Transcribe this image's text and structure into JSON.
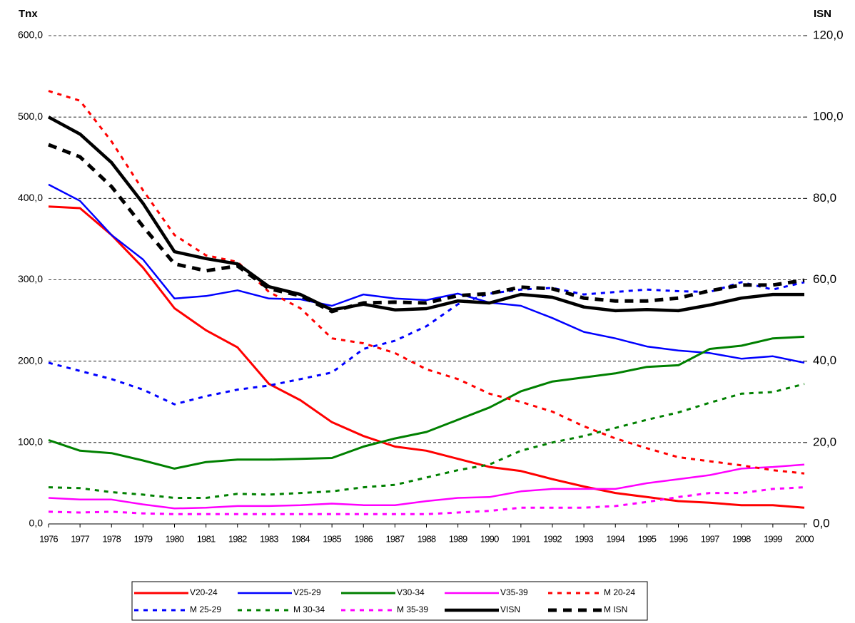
{
  "chart_data": {
    "type": "line",
    "y_label": "Tnx",
    "y2_label": "ISN",
    "categories": [
      "1976",
      "1977",
      "1978",
      "1979",
      "1980",
      "1981",
      "1982",
      "1983",
      "1984",
      "1985",
      "1986",
      "1987",
      "1988",
      "1989",
      "1990",
      "1991",
      "1992",
      "1993",
      "1994",
      "1995",
      "1996",
      "1997",
      "1998",
      "1999",
      "2000"
    ],
    "ylim": [
      0,
      600
    ],
    "yticks": [
      {
        "value": 0,
        "label": "0,0"
      },
      {
        "value": 100,
        "label": "100,0"
      },
      {
        "value": 200,
        "label": "200,0"
      },
      {
        "value": 300,
        "label": "300,0"
      },
      {
        "value": 400,
        "label": "400,0"
      },
      {
        "value": 500,
        "label": "500,0"
      },
      {
        "value": 600,
        "label": "600,0"
      }
    ],
    "y2lim": [
      0,
      120
    ],
    "y2ticks": [
      {
        "value": 0,
        "label": "0,0"
      },
      {
        "value": 20,
        "label": "20,0"
      },
      {
        "value": 40,
        "label": "40,0"
      },
      {
        "value": 60,
        "label": "60,0"
      },
      {
        "value": 80,
        "label": "80,0"
      },
      {
        "value": 100,
        "label": "100,0"
      },
      {
        "value": 120,
        "label": "120,0"
      }
    ],
    "grid": true,
    "legend": "bottom",
    "series": [
      {
        "name": "V20-24",
        "color": "#ff0000",
        "style": "solid",
        "line_width": 3,
        "values": [
          390,
          388,
          355,
          315,
          265,
          238,
          217,
          172,
          152,
          125,
          108,
          95,
          90,
          80,
          70,
          65,
          55,
          46,
          38,
          33,
          28,
          26,
          23,
          23,
          20
        ]
      },
      {
        "name": "V25-29",
        "color": "#0000ff",
        "style": "solid",
        "line_width": 2.5,
        "values": [
          417,
          397,
          355,
          325,
          277,
          280,
          287,
          277,
          276,
          268,
          282,
          277,
          275,
          283,
          272,
          268,
          253,
          236,
          228,
          218,
          213,
          210,
          203,
          206,
          198
        ]
      },
      {
        "name": "V30-34",
        "color": "#008000",
        "style": "solid",
        "line_width": 3,
        "values": [
          103,
          90,
          87,
          78,
          68,
          76,
          79,
          79,
          80,
          81,
          95,
          105,
          113,
          128,
          143,
          163,
          175,
          180,
          185,
          193,
          195,
          215,
          219,
          228,
          230
        ]
      },
      {
        "name": "V35-39",
        "color": "#ff00ff",
        "style": "solid",
        "line_width": 2.5,
        "values": [
          32,
          30,
          30,
          24,
          19,
          20,
          22,
          22,
          23,
          25,
          23,
          23,
          28,
          32,
          33,
          40,
          43,
          43,
          43,
          50,
          55,
          60,
          68,
          70,
          73
        ]
      },
      {
        "name": "M 20-24",
        "color": "#ff0000",
        "style": "dashed",
        "line_width": 3,
        "values": [
          532,
          520,
          470,
          410,
          355,
          330,
          322,
          285,
          265,
          228,
          222,
          210,
          190,
          178,
          160,
          150,
          138,
          120,
          105,
          93,
          82,
          77,
          72,
          66,
          62
        ]
      },
      {
        "name": "M 25-29",
        "color": "#0000ff",
        "style": "dashed",
        "line_width": 3,
        "values": [
          198,
          188,
          178,
          165,
          147,
          157,
          165,
          170,
          178,
          186,
          215,
          225,
          243,
          270,
          283,
          288,
          290,
          282,
          285,
          288,
          286,
          285,
          297,
          288,
          297
        ]
      },
      {
        "name": "M 30-34",
        "color": "#008000",
        "style": "dashed",
        "line_width": 3,
        "values": [
          45,
          44,
          39,
          36,
          32,
          32,
          37,
          36,
          38,
          40,
          45,
          48,
          57,
          66,
          73,
          90,
          100,
          108,
          118,
          128,
          137,
          149,
          160,
          162,
          172
        ]
      },
      {
        "name": "M 35-39",
        "color": "#ff00ff",
        "style": "dashed",
        "line_width": 3,
        "values": [
          15,
          14,
          15,
          13,
          12,
          12,
          12,
          12,
          12,
          12,
          12,
          12,
          12,
          14,
          16,
          20,
          20,
          20,
          22,
          27,
          33,
          38,
          38,
          43,
          45
        ]
      },
      {
        "name": "VISN",
        "color": "#000000",
        "style": "solid",
        "line_width": 4.5,
        "axis": "y2",
        "values": [
          100,
          95.8,
          88.8,
          78.8,
          66.9,
          65.2,
          63.9,
          58.3,
          56.4,
          52.6,
          54,
          52.6,
          52.9,
          54.8,
          54.3,
          56.4,
          55.7,
          53.3,
          52.4,
          52.7,
          52.4,
          53.8,
          55.5,
          56.4,
          56.4
        ]
      },
      {
        "name": "M ISN",
        "color": "#000000",
        "style": "dashed",
        "line_width": 5,
        "axis": "y2",
        "values": [
          93.2,
          90.2,
          82.9,
          73.1,
          63.9,
          62.2,
          63.4,
          57.8,
          56.1,
          52.2,
          54.3,
          54.5,
          54.3,
          56.1,
          56.6,
          58.2,
          57.8,
          55.5,
          54.8,
          54.8,
          55.5,
          57.3,
          58.7,
          58.7,
          59.9
        ]
      }
    ]
  }
}
